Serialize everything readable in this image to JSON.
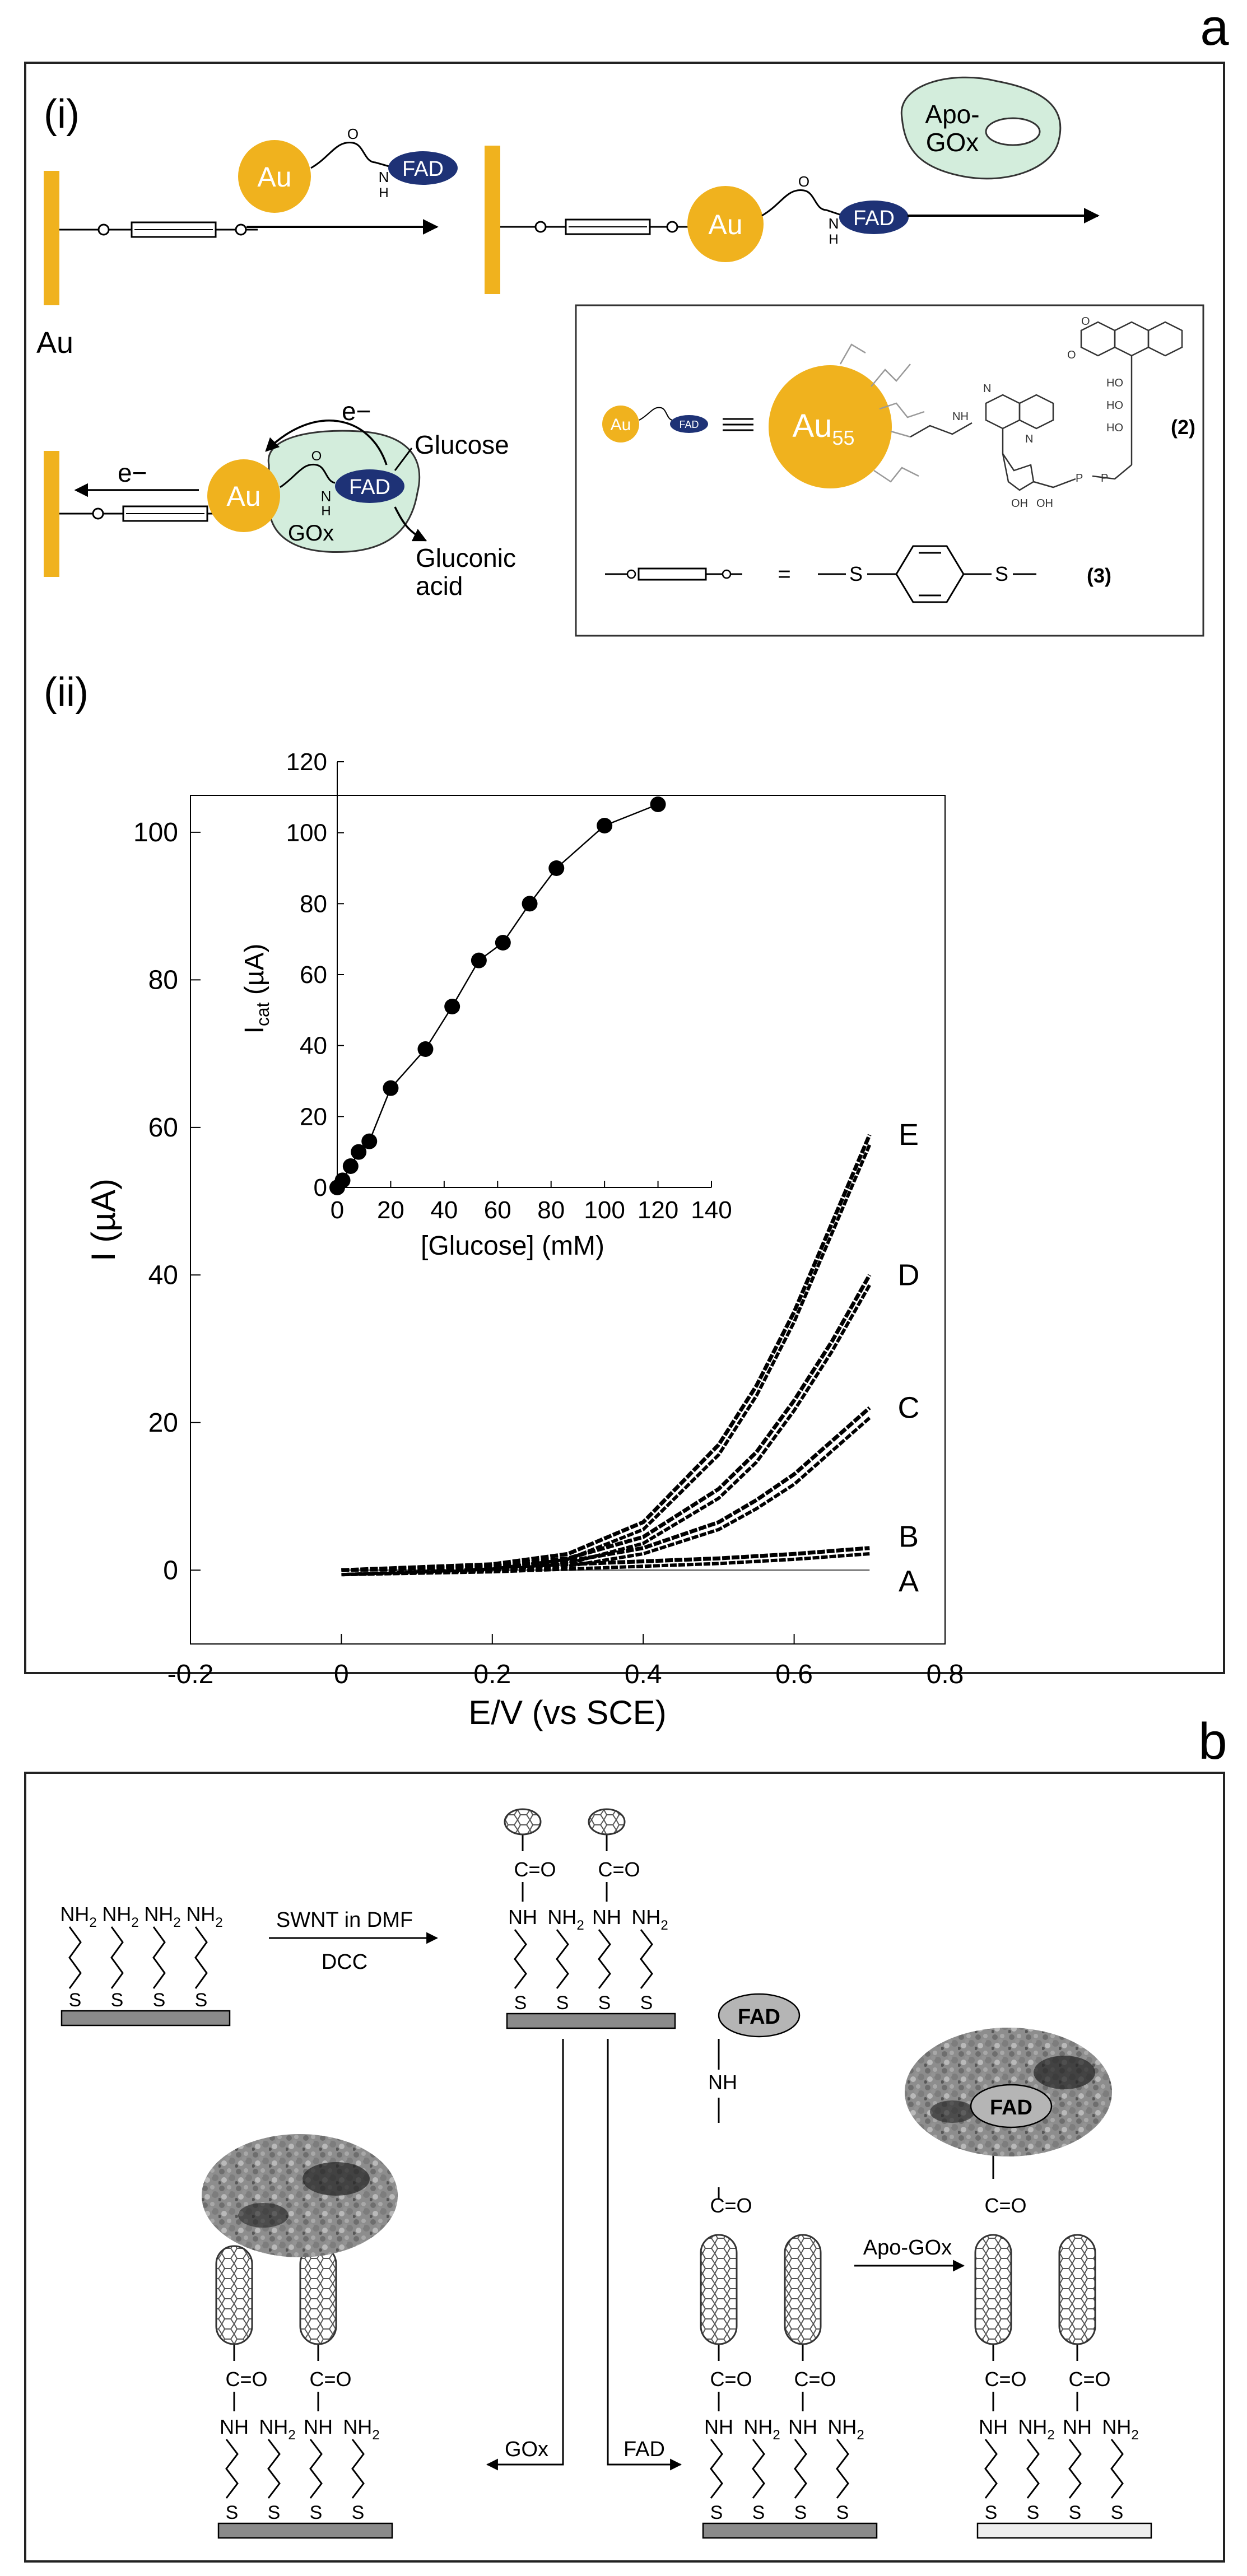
{
  "panel_a": {
    "label": "a",
    "part_i": "(i)",
    "part_ii": "(ii)",
    "au_electrode": "Au",
    "au_particle": "Au",
    "fad": "FAD",
    "apo_gox_line1": "Apo-",
    "apo_gox_line2": "GOx",
    "electron": "e−",
    "glucose": "Glucose",
    "gluconic_line1": "Gluconic",
    "gluconic_line2": "acid",
    "gox": "GOx",
    "legend": {
      "au55": "Au",
      "au55_sub": "55",
      "fad_small": "FAD",
      "compound2": "(2)",
      "compound3": "(3)",
      "s": "S",
      "equals": "="
    },
    "chem_labels": {
      "o": "O",
      "h": "H",
      "n": "N",
      "nh": "NH",
      "oh": "OH",
      "ho": "HO",
      "p": "P"
    }
  },
  "chart_data": [
    {
      "type": "line",
      "title": "",
      "xlabel": "E/V (vs SCE)",
      "ylabel": "I (µA)",
      "xlim": [
        -0.2,
        0.8
      ],
      "ylim": [
        -10,
        105
      ],
      "xticks": [
        "-0.2",
        "0",
        "0.2",
        "0.4",
        "0.6",
        "0.8"
      ],
      "yticks": [
        "0",
        "20",
        "40",
        "60",
        "80",
        "100"
      ],
      "series": [
        {
          "name": "A",
          "x": [
            0,
            0.2,
            0.4,
            0.6,
            0.7
          ],
          "y": [
            0,
            0,
            0,
            0,
            0
          ]
        },
        {
          "name": "B",
          "x": [
            0,
            0.2,
            0.3,
            0.4,
            0.5,
            0.6,
            0.7
          ],
          "y": [
            0,
            0.4,
            0.8,
            1.2,
            1.6,
            2.2,
            3
          ]
        },
        {
          "name": "C",
          "x": [
            0,
            0.2,
            0.3,
            0.4,
            0.5,
            0.55,
            0.6,
            0.65,
            0.7
          ],
          "y": [
            0,
            0.5,
            1.2,
            3,
            6.5,
            9.5,
            13,
            17.5,
            22
          ]
        },
        {
          "name": "D",
          "x": [
            0,
            0.2,
            0.3,
            0.4,
            0.5,
            0.55,
            0.6,
            0.65,
            0.7
          ],
          "y": [
            0,
            0.6,
            1.6,
            4.5,
            11,
            16,
            23,
            31,
            40
          ]
        },
        {
          "name": "E",
          "x": [
            0,
            0.2,
            0.3,
            0.4,
            0.5,
            0.55,
            0.6,
            0.65,
            0.7
          ],
          "y": [
            0,
            0.8,
            2.2,
            6.5,
            17,
            25,
            35,
            47,
            59
          ]
        }
      ]
    },
    {
      "type": "scatter",
      "title": "inset",
      "xlabel": "[Glucose] (mM)",
      "ylabel": "I",
      "ylabel_sub": "cat",
      "ylabel_unit": " (µA)",
      "xlim": [
        0,
        140
      ],
      "ylim": [
        0,
        120
      ],
      "xticks": [
        "0",
        "20",
        "40",
        "60",
        "80",
        "100",
        "120",
        "140"
      ],
      "yticks": [
        "0",
        "20",
        "40",
        "60",
        "80",
        "100",
        "120"
      ],
      "series": [
        {
          "name": "Icat",
          "x": [
            0,
            2,
            5,
            8,
            12,
            20,
            33,
            43,
            53,
            62,
            72,
            82,
            100,
            120
          ],
          "y": [
            0,
            2,
            6,
            10,
            13,
            28,
            39,
            51,
            64,
            69,
            80,
            90,
            102,
            108
          ]
        }
      ]
    }
  ],
  "panel_b": {
    "label": "b",
    "nh2": "NH",
    "nh2_sub": "2",
    "nh": "NH",
    "s": "S",
    "c_eq_o": "C=O",
    "fad": "FAD",
    "swnt_reaction": "SWNT in DMF",
    "dcc": "DCC",
    "gox_step": "GOx",
    "fad_step": "FAD",
    "apo_gox_step": "Apo-GOx"
  }
}
